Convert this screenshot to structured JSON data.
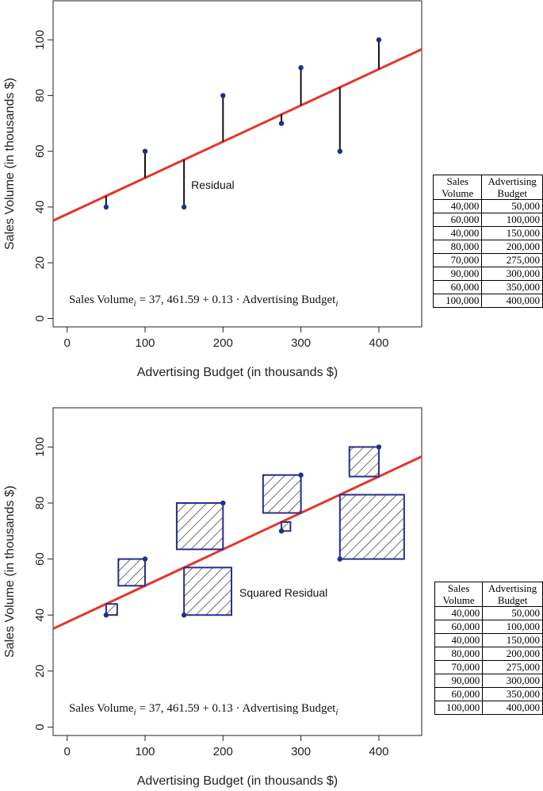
{
  "chart_data": [
    {
      "type": "scatter",
      "subtype": "regression-residuals",
      "xlabel": "Advertising Budget (in thousands $)",
      "ylabel": "Sales Volume (in thousands $)",
      "xlim": [
        -18,
        455
      ],
      "ylim": [
        -3,
        114
      ],
      "x_ticks": [
        0,
        100,
        200,
        300,
        400
      ],
      "y_ticks": [
        0,
        20,
        40,
        60,
        80,
        100
      ],
      "x": [
        50,
        100,
        150,
        200,
        275,
        300,
        350,
        400
      ],
      "y": [
        40,
        60,
        40,
        80,
        70,
        90,
        60,
        100
      ],
      "regression": {
        "intercept": 37.46159,
        "slope": 0.13,
        "color": "#e53529"
      },
      "point_color": "#1f2f8f",
      "annotation": "Residual",
      "equation": {
        "lhs": "Sales Volume",
        "sub": "i",
        "rhs": "= 37, 461.59 + 0.13 · Advertising Budget"
      },
      "grid": false
    },
    {
      "type": "scatter",
      "subtype": "regression-squared-residuals",
      "xlabel": "Advertising Budget (in thousands $)",
      "ylabel": "Sales Volume (in thousands $)",
      "xlim": [
        -18,
        455
      ],
      "ylim": [
        -3,
        114
      ],
      "x_ticks": [
        0,
        100,
        200,
        300,
        400
      ],
      "y_ticks": [
        0,
        20,
        40,
        60,
        80,
        100
      ],
      "x": [
        50,
        100,
        150,
        200,
        275,
        300,
        350,
        400
      ],
      "y": [
        40,
        60,
        40,
        80,
        70,
        90,
        60,
        100
      ],
      "regression": {
        "intercept": 37.46159,
        "slope": 0.13,
        "color": "#e53529"
      },
      "point_color": "#1f2f8f",
      "square_color": "#2b2d8a",
      "annotation": "Squared Residual",
      "equation": {
        "lhs": "Sales Volume",
        "sub": "i",
        "rhs": "= 37, 461.59 + 0.13 · Advertising Budget"
      },
      "grid": false
    }
  ],
  "table": {
    "headers": [
      [
        "Sales",
        "Volume"
      ],
      [
        "Advertising",
        "Budget"
      ]
    ],
    "rows": [
      [
        "40,000",
        "50,000"
      ],
      [
        "60,000",
        "100,000"
      ],
      [
        "40,000",
        "150,000"
      ],
      [
        "80,000",
        "200,000"
      ],
      [
        "70,000",
        "275,000"
      ],
      [
        "90,000",
        "300,000"
      ],
      [
        "60,000",
        "350,000"
      ],
      [
        "100,000",
        "400,000"
      ]
    ]
  }
}
